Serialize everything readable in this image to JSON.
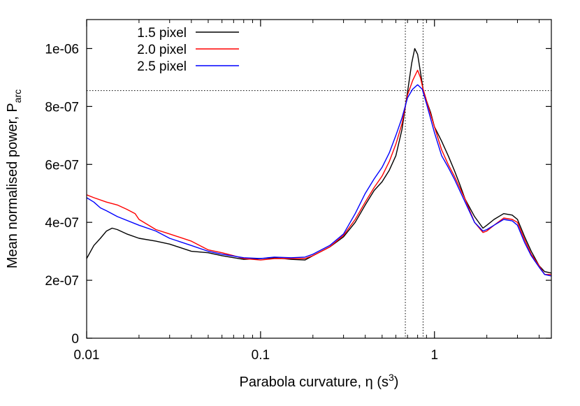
{
  "chart_data": {
    "type": "line",
    "xlabel": "Parabola curvature, η (s",
    "xlabel_sup": "3",
    "xlabel_end": ")",
    "ylabel": "Mean normalised power, P",
    "ylabel_sub": "arc",
    "x_scale": "log",
    "xlim": [
      0.01,
      4.7
    ],
    "ylim": [
      0,
      1.1e-06
    ],
    "x_ticks": [
      {
        "value": 0.01,
        "label": "0.01"
      },
      {
        "value": 0.1,
        "label": "0.1"
      },
      {
        "value": 1,
        "label": "1"
      }
    ],
    "y_ticks": [
      {
        "value": 0,
        "label": "0"
      },
      {
        "value": 2e-07,
        "label": "2e-07"
      },
      {
        "value": 4e-07,
        "label": "4e-07"
      },
      {
        "value": 6e-07,
        "label": "6e-07"
      },
      {
        "value": 8e-07,
        "label": "8e-07"
      },
      {
        "value": 1e-06,
        "label": "1e-06"
      }
    ],
    "grid": false,
    "legend_position": "top-left",
    "reference_lines": {
      "horizontal": [
        8.55e-07
      ],
      "vertical": [
        0.68,
        0.86
      ],
      "style": "dotted"
    },
    "series": [
      {
        "name": "1.5 pixel",
        "color": "#000000",
        "points": [
          [
            0.01,
            2.75e-07
          ],
          [
            0.011,
            3.2e-07
          ],
          [
            0.012,
            3.45e-07
          ],
          [
            0.013,
            3.7e-07
          ],
          [
            0.014,
            3.8e-07
          ],
          [
            0.015,
            3.75e-07
          ],
          [
            0.017,
            3.6e-07
          ],
          [
            0.02,
            3.45e-07
          ],
          [
            0.025,
            3.35e-07
          ],
          [
            0.03,
            3.25e-07
          ],
          [
            0.04,
            3e-07
          ],
          [
            0.05,
            2.95e-07
          ],
          [
            0.06,
            2.85e-07
          ],
          [
            0.08,
            2.72e-07
          ],
          [
            0.1,
            2.75e-07
          ],
          [
            0.12,
            2.78e-07
          ],
          [
            0.15,
            2.72e-07
          ],
          [
            0.18,
            2.7e-07
          ],
          [
            0.2,
            2.85e-07
          ],
          [
            0.25,
            3.15e-07
          ],
          [
            0.3,
            3.5e-07
          ],
          [
            0.35,
            4e-07
          ],
          [
            0.4,
            4.6e-07
          ],
          [
            0.45,
            5.1e-07
          ],
          [
            0.5,
            5.4e-07
          ],
          [
            0.55,
            5.8e-07
          ],
          [
            0.6,
            6.3e-07
          ],
          [
            0.65,
            7.2e-07
          ],
          [
            0.7,
            8.5e-07
          ],
          [
            0.74,
            9.5e-07
          ],
          [
            0.77,
            1e-06
          ],
          [
            0.8,
            9.8e-07
          ],
          [
            0.83,
            9.2e-07
          ],
          [
            0.86,
            8.6e-07
          ],
          [
            0.9,
            8.2e-07
          ],
          [
            0.95,
            7.8e-07
          ],
          [
            1.0,
            7.3e-07
          ],
          [
            1.1,
            6.8e-07
          ],
          [
            1.2,
            6.3e-07
          ],
          [
            1.3,
            5.8e-07
          ],
          [
            1.4,
            5.3e-07
          ],
          [
            1.5,
            4.8e-07
          ],
          [
            1.7,
            4.2e-07
          ],
          [
            1.9,
            3.8e-07
          ],
          [
            2.0,
            3.9e-07
          ],
          [
            2.2,
            4.1e-07
          ],
          [
            2.5,
            4.3e-07
          ],
          [
            2.8,
            4.25e-07
          ],
          [
            3.0,
            4.1e-07
          ],
          [
            3.3,
            3.5e-07
          ],
          [
            3.6,
            3e-07
          ],
          [
            4.0,
            2.5e-07
          ],
          [
            4.3,
            2.3e-07
          ],
          [
            4.7,
            2.25e-07
          ]
        ]
      },
      {
        "name": "2.0 pixel",
        "color": "#ff0000",
        "points": [
          [
            0.01,
            4.95e-07
          ],
          [
            0.011,
            4.85e-07
          ],
          [
            0.013,
            4.7e-07
          ],
          [
            0.015,
            4.6e-07
          ],
          [
            0.017,
            4.45e-07
          ],
          [
            0.019,
            4.3e-07
          ],
          [
            0.02,
            4.1e-07
          ],
          [
            0.025,
            3.75e-07
          ],
          [
            0.03,
            3.6e-07
          ],
          [
            0.04,
            3.35e-07
          ],
          [
            0.05,
            3.05e-07
          ],
          [
            0.06,
            2.95e-07
          ],
          [
            0.07,
            2.85e-07
          ],
          [
            0.08,
            2.75e-07
          ],
          [
            0.1,
            2.7e-07
          ],
          [
            0.12,
            2.75e-07
          ],
          [
            0.15,
            2.75e-07
          ],
          [
            0.18,
            2.75e-07
          ],
          [
            0.2,
            2.85e-07
          ],
          [
            0.25,
            3.15e-07
          ],
          [
            0.3,
            3.55e-07
          ],
          [
            0.35,
            4.1e-07
          ],
          [
            0.4,
            4.7e-07
          ],
          [
            0.45,
            5.2e-07
          ],
          [
            0.5,
            5.6e-07
          ],
          [
            0.55,
            6.1e-07
          ],
          [
            0.6,
            6.7e-07
          ],
          [
            0.65,
            7.4e-07
          ],
          [
            0.7,
            8.4e-07
          ],
          [
            0.75,
            8.9e-07
          ],
          [
            0.8,
            9.25e-07
          ],
          [
            0.83,
            9e-07
          ],
          [
            0.86,
            8.6e-07
          ],
          [
            0.9,
            8.2e-07
          ],
          [
            1.0,
            7.3e-07
          ],
          [
            1.1,
            6.5e-07
          ],
          [
            1.2,
            6e-07
          ],
          [
            1.3,
            5.6e-07
          ],
          [
            1.5,
            4.8e-07
          ],
          [
            1.7,
            4e-07
          ],
          [
            1.9,
            3.65e-07
          ],
          [
            2.0,
            3.7e-07
          ],
          [
            2.2,
            3.9e-07
          ],
          [
            2.5,
            4.15e-07
          ],
          [
            2.8,
            4.1e-07
          ],
          [
            3.0,
            4e-07
          ],
          [
            3.3,
            3.4e-07
          ],
          [
            3.6,
            2.9e-07
          ],
          [
            4.0,
            2.5e-07
          ],
          [
            4.3,
            2.2e-07
          ],
          [
            4.7,
            2.2e-07
          ]
        ]
      },
      {
        "name": "2.5 pixel",
        "color": "#0000ff",
        "points": [
          [
            0.01,
            4.85e-07
          ],
          [
            0.011,
            4.7e-07
          ],
          [
            0.012,
            4.5e-07
          ],
          [
            0.013,
            4.4e-07
          ],
          [
            0.015,
            4.2e-07
          ],
          [
            0.02,
            3.9e-07
          ],
          [
            0.025,
            3.7e-07
          ],
          [
            0.03,
            3.45e-07
          ],
          [
            0.04,
            3.2e-07
          ],
          [
            0.05,
            3e-07
          ],
          [
            0.06,
            2.9e-07
          ],
          [
            0.08,
            2.78e-07
          ],
          [
            0.1,
            2.75e-07
          ],
          [
            0.12,
            2.8e-07
          ],
          [
            0.15,
            2.78e-07
          ],
          [
            0.18,
            2.8e-07
          ],
          [
            0.2,
            2.9e-07
          ],
          [
            0.25,
            3.2e-07
          ],
          [
            0.3,
            3.6e-07
          ],
          [
            0.35,
            4.3e-07
          ],
          [
            0.4,
            5e-07
          ],
          [
            0.45,
            5.5e-07
          ],
          [
            0.5,
            5.9e-07
          ],
          [
            0.55,
            6.4e-07
          ],
          [
            0.6,
            7e-07
          ],
          [
            0.65,
            7.6e-07
          ],
          [
            0.7,
            8.3e-07
          ],
          [
            0.75,
            8.6e-07
          ],
          [
            0.8,
            8.75e-07
          ],
          [
            0.85,
            8.6e-07
          ],
          [
            0.9,
            8.1e-07
          ],
          [
            1.0,
            7.1e-07
          ],
          [
            1.1,
            6.3e-07
          ],
          [
            1.2,
            5.9e-07
          ],
          [
            1.3,
            5.5e-07
          ],
          [
            1.5,
            4.7e-07
          ],
          [
            1.7,
            4e-07
          ],
          [
            1.9,
            3.7e-07
          ],
          [
            2.0,
            3.75e-07
          ],
          [
            2.2,
            3.9e-07
          ],
          [
            2.5,
            4.1e-07
          ],
          [
            2.8,
            4.05e-07
          ],
          [
            3.0,
            3.9e-07
          ],
          [
            3.3,
            3.3e-07
          ],
          [
            3.6,
            2.85e-07
          ],
          [
            4.0,
            2.45e-07
          ],
          [
            4.3,
            2.2e-07
          ],
          [
            4.7,
            2.15e-07
          ]
        ]
      }
    ]
  }
}
